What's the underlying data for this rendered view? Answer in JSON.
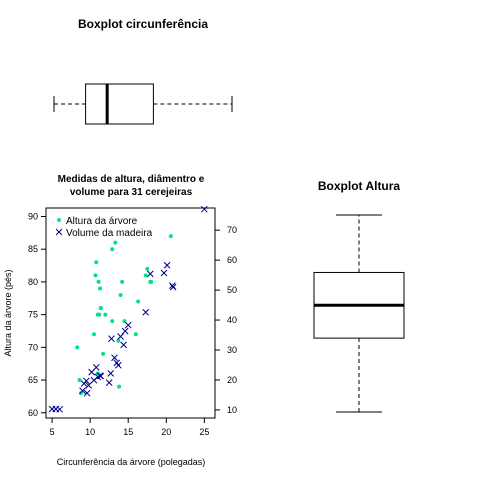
{
  "chart_data": [
    {
      "type": "boxplot",
      "title": "Boxplot circunferência",
      "orientation": "horizontal",
      "stats": {
        "min": 5,
        "q1": 9.1,
        "median": 11.9,
        "q3": 17.9,
        "max": 28.1
      }
    },
    {
      "type": "scatter",
      "title_lines": [
        "Medidas de altura, diâmentro e",
        "volume para 31 cerejeiras"
      ],
      "xlabel": "Circunferência da árvore (polegadas)",
      "ylabel": "Altura da árvore (pés)",
      "xlim": [
        4.2,
        26.4
      ],
      "ylim": [
        59.2,
        91.3
      ],
      "y2lim": [
        7.3,
        77.4
      ],
      "xticks": [
        5,
        10,
        15,
        20,
        25
      ],
      "yticks": [
        60,
        65,
        70,
        75,
        80,
        85,
        90
      ],
      "y2ticks": [
        10,
        20,
        30,
        40,
        50,
        60,
        70
      ],
      "legend_position": "top-left",
      "series": [
        {
          "name": "Altura da árvore",
          "marker": "dot",
          "color": "#00e38c",
          "axis": "left",
          "points": [
            [
              8.3,
              70
            ],
            [
              8.6,
              65
            ],
            [
              8.8,
              63
            ],
            [
              10.5,
              72
            ],
            [
              10.7,
              81
            ],
            [
              10.8,
              83
            ],
            [
              11,
              66
            ],
            [
              11,
              75
            ],
            [
              11.1,
              80
            ],
            [
              11.2,
              75
            ],
            [
              11.3,
              79
            ],
            [
              11.4,
              76
            ],
            [
              11.4,
              76
            ],
            [
              11.7,
              69
            ],
            [
              12,
              75
            ],
            [
              12.9,
              74
            ],
            [
              12.9,
              85
            ],
            [
              13.3,
              86
            ],
            [
              13.7,
              71
            ],
            [
              13.8,
              64
            ],
            [
              14,
              78
            ],
            [
              14.2,
              80
            ],
            [
              14.5,
              74
            ],
            [
              16,
              72
            ],
            [
              16.3,
              77
            ],
            [
              17.3,
              81
            ],
            [
              17.5,
              82
            ],
            [
              17.9,
              80
            ],
            [
              18,
              80
            ],
            [
              18,
              80
            ],
            [
              20.6,
              87
            ]
          ]
        },
        {
          "name": "Volume da madeira",
          "marker": "x",
          "color": "#00008b",
          "axis": "right",
          "points": [
            [
              5,
              10.3
            ],
            [
              5.5,
              10.3
            ],
            [
              6,
              10.2
            ],
            [
              9,
              16.4
            ],
            [
              9.2,
              18.8
            ],
            [
              9.5,
              19.7
            ],
            [
              9.6,
              15.6
            ],
            [
              9.8,
              18.2
            ],
            [
              10.2,
              22.6
            ],
            [
              10.5,
              19.9
            ],
            [
              10.8,
              24.2
            ],
            [
              11,
              21
            ],
            [
              11.3,
              21.4
            ],
            [
              11.4,
              21.3
            ],
            [
              12.5,
              19.1
            ],
            [
              12.7,
              22.2
            ],
            [
              12.8,
              33.8
            ],
            [
              13.2,
              27.4
            ],
            [
              13.5,
              25.7
            ],
            [
              13.7,
              24.9
            ],
            [
              14,
              34.5
            ],
            [
              14.4,
              31.7
            ],
            [
              14.6,
              36.3
            ],
            [
              15,
              38.3
            ],
            [
              17.3,
              42.6
            ],
            [
              17.9,
              55.4
            ],
            [
              19.7,
              55.7
            ],
            [
              20.1,
              58.3
            ],
            [
              20.8,
              51.5
            ],
            [
              20.9,
              51
            ],
            [
              25,
              77
            ]
          ]
        }
      ]
    },
    {
      "type": "boxplot",
      "title": "Boxplot Altura",
      "orientation": "vertical",
      "stats": {
        "min": 63,
        "q1": 72,
        "median": 76,
        "q3": 80,
        "max": 87
      }
    }
  ]
}
